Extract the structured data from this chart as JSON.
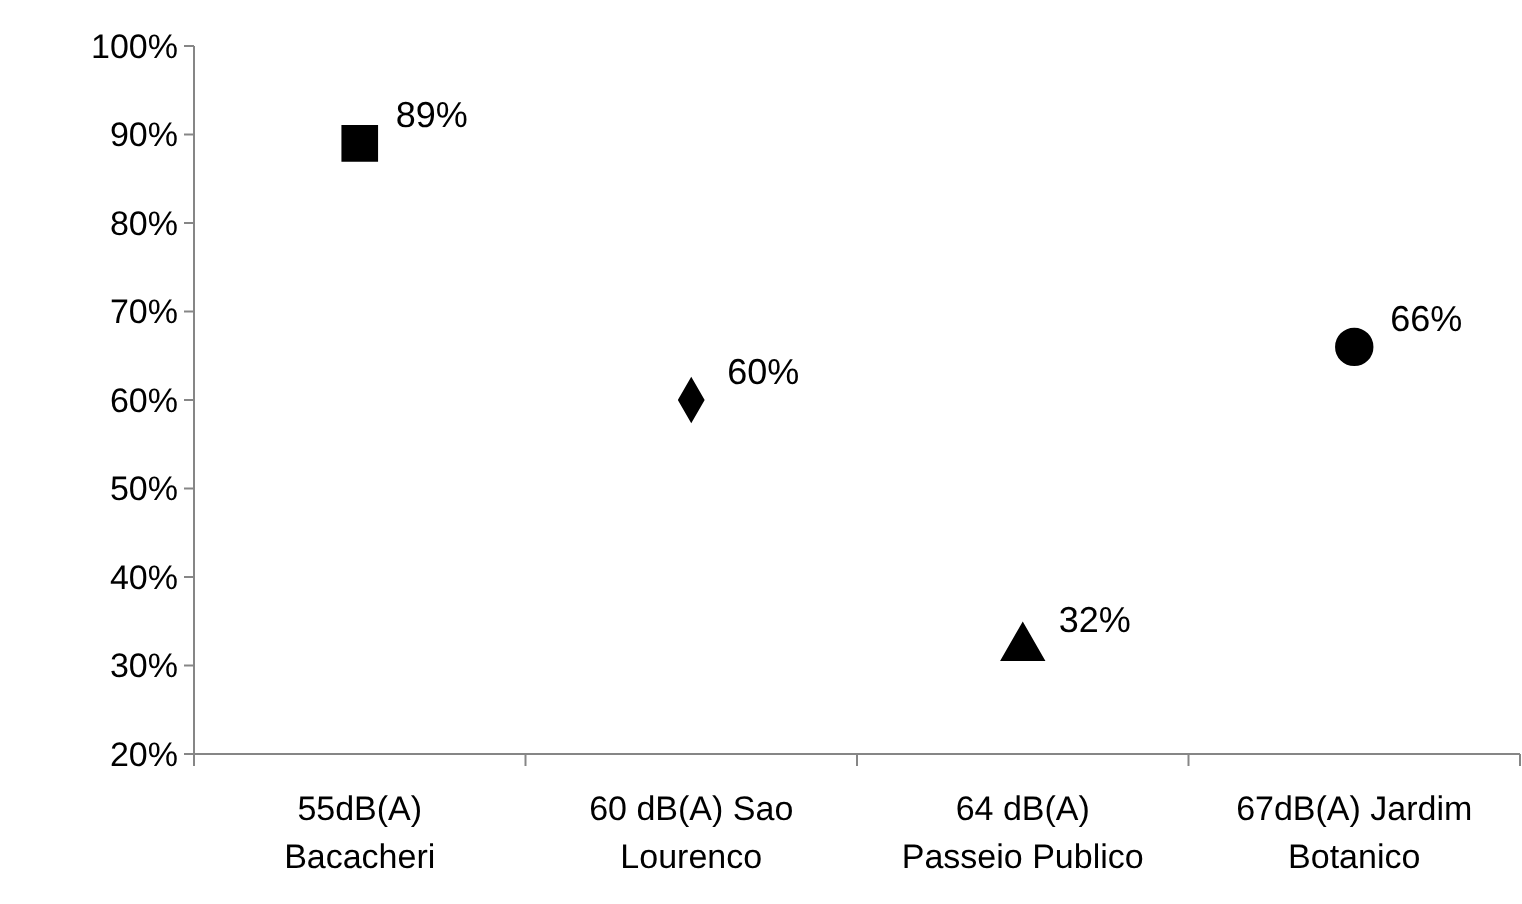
{
  "chart_data": {
    "type": "scatter",
    "categories": [
      "55dB(A)\nBacacheri",
      "60 dB(A) Sao\nLourenco",
      "64 dB(A)\nPasseio Publico",
      "67dB(A) Jardim\nBotanico"
    ],
    "ylim": [
      20,
      100
    ],
    "yticks": [
      {
        "value": 20,
        "label": "20%"
      },
      {
        "value": 30,
        "label": "30%"
      },
      {
        "value": 40,
        "label": "40%"
      },
      {
        "value": 50,
        "label": "50%"
      },
      {
        "value": 60,
        "label": "60%"
      },
      {
        "value": 70,
        "label": "70%"
      },
      {
        "value": 80,
        "label": "80%"
      },
      {
        "value": 90,
        "label": "90%"
      },
      {
        "value": 100,
        "label": "100%"
      }
    ],
    "grid": false,
    "series": [
      {
        "x": [
          "55dB(A)\nBacacheri"
        ],
        "values": [
          89
        ],
        "value_labels": [
          "89%"
        ],
        "marker": "square",
        "color": "#000000"
      },
      {
        "x": [
          "60 dB(A) Sao\nLourenco"
        ],
        "values": [
          60
        ],
        "value_labels": [
          "60%"
        ],
        "marker": "diamond",
        "color": "#000000"
      },
      {
        "x": [
          "64 dB(A)\nPasseio Publico"
        ],
        "values": [
          32
        ],
        "value_labels": [
          "32%"
        ],
        "marker": "triangle",
        "color": "#000000"
      },
      {
        "x": [
          "67dB(A) Jardim\nBotanico"
        ],
        "values": [
          66
        ],
        "value_labels": [
          "66%"
        ],
        "marker": "circle",
        "color": "#000000"
      }
    ]
  }
}
